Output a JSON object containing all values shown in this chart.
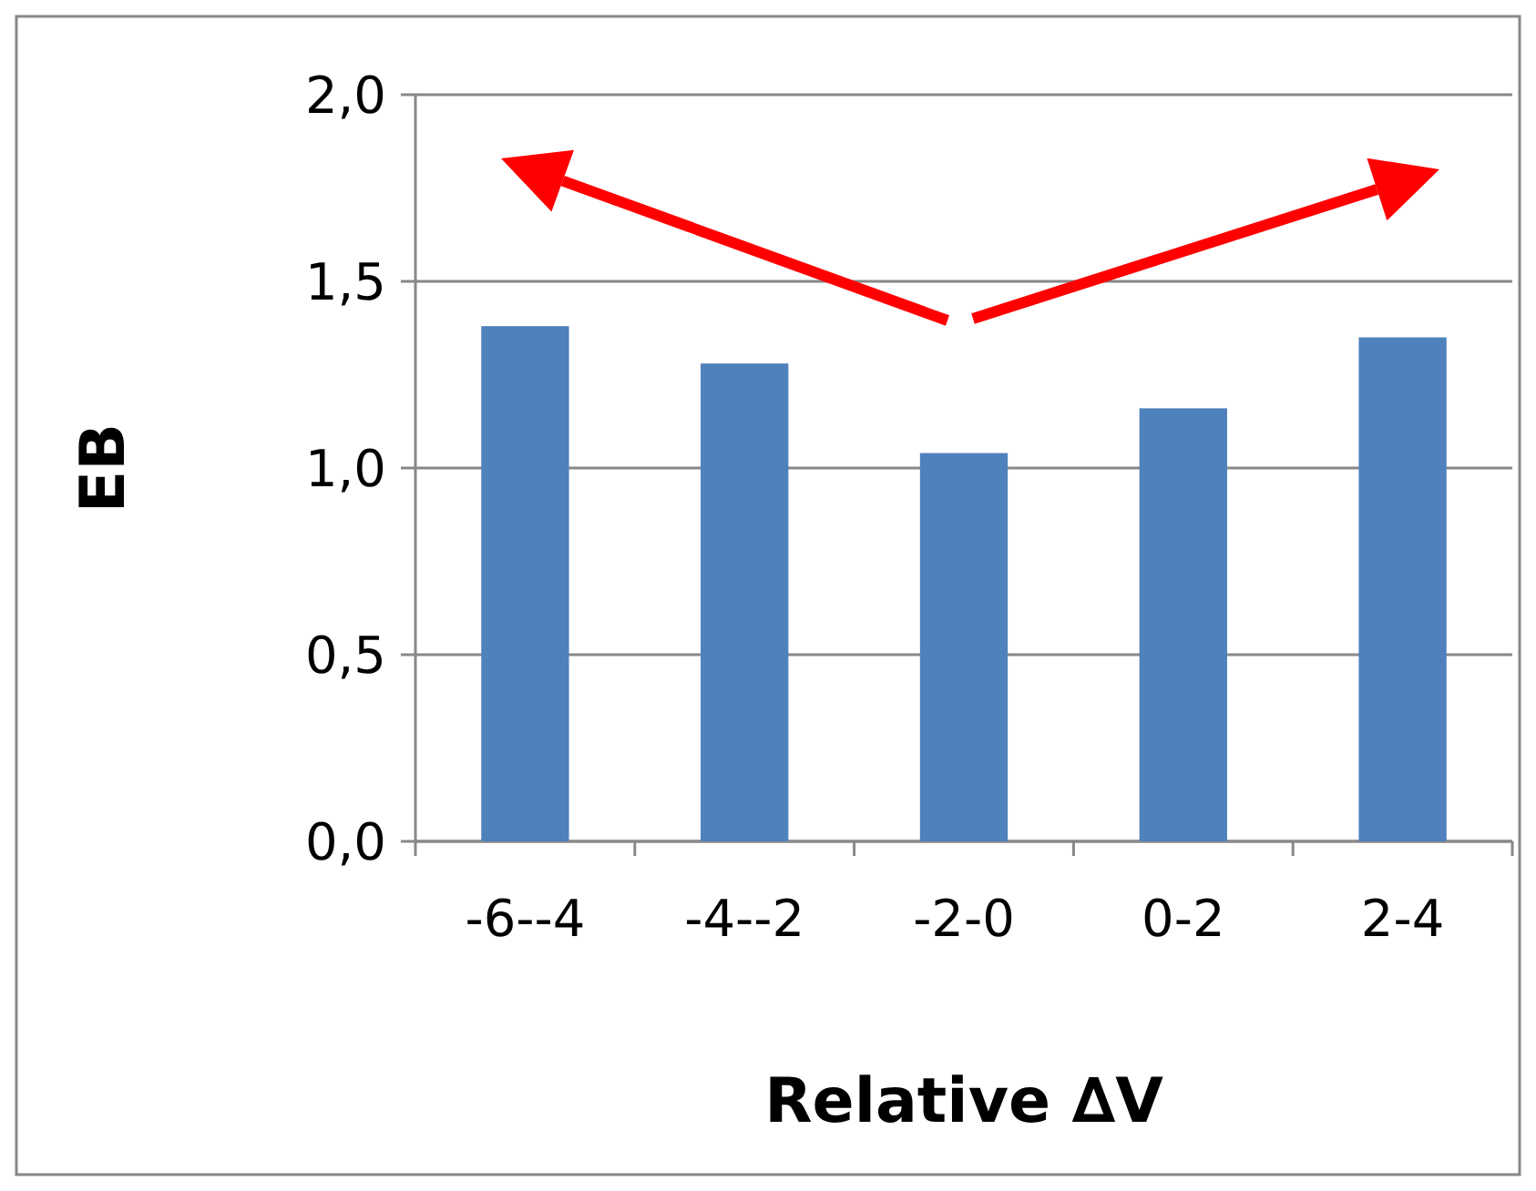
{
  "chart_data": {
    "type": "bar",
    "xlabel": "Relative ∆V",
    "ylabel": "EB",
    "categories": [
      "-6--4",
      "-4--2",
      "-2-0",
      "0-2",
      "2-4"
    ],
    "values": [
      1.38,
      1.28,
      1.04,
      1.16,
      1.35
    ],
    "color": "#4f81bd",
    "ylim": [
      0,
      2
    ],
    "yticks": [
      {
        "value": 0,
        "label": "0,0"
      },
      {
        "value": 0.5,
        "label": "0,5"
      },
      {
        "value": 1,
        "label": "1,0"
      },
      {
        "value": 1.5,
        "label": "1,5"
      },
      {
        "value": 2,
        "label": "2,0"
      }
    ],
    "grid": "y"
  }
}
